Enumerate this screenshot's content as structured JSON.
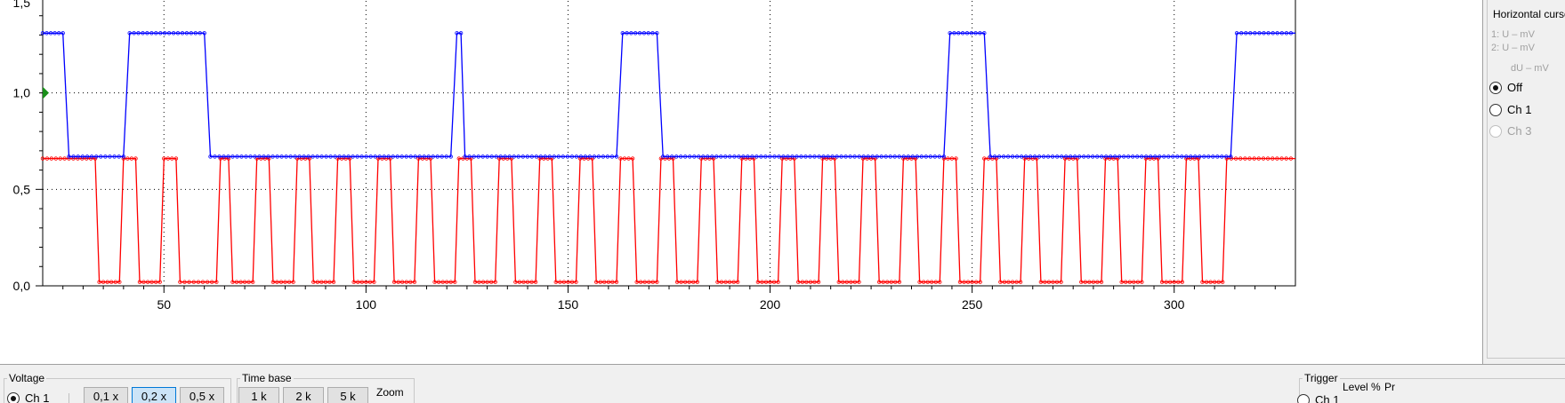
{
  "plot": {
    "x_ticks": [
      50,
      100,
      150,
      200,
      250,
      300
    ],
    "y_ticks": [
      "0,0",
      "0,5",
      "1,0"
    ],
    "y_top_partial": "1,5",
    "x_range": [
      20,
      330
    ],
    "y_range": [
      0,
      1.5
    ],
    "trigger_marker_level": 1.0,
    "colors": {
      "channel_1": "#ff0000",
      "channel_2": "#0000ff",
      "grid": "#000000",
      "trigger_marker": "#1a8f1a"
    }
  },
  "channels": {
    "blue": {
      "low": 0.67,
      "high": 1.31,
      "transitions": [
        [
          20,
          1.31
        ],
        [
          25,
          1.31
        ],
        [
          26.5,
          0.67
        ],
        [
          40,
          0.67
        ],
        [
          41.5,
          1.31
        ],
        [
          60,
          1.31
        ],
        [
          61.5,
          0.67
        ],
        [
          121,
          0.67
        ],
        [
          122.5,
          1.31
        ],
        [
          123.5,
          1.31
        ],
        [
          124.5,
          0.67
        ],
        [
          162,
          0.67
        ],
        [
          163.5,
          1.31
        ],
        [
          172,
          1.31
        ],
        [
          173.5,
          0.67
        ],
        [
          243,
          0.67
        ],
        [
          244.5,
          1.31
        ],
        [
          253,
          1.31
        ],
        [
          254.5,
          0.67
        ],
        [
          314,
          0.67
        ],
        [
          315.5,
          1.31
        ],
        [
          330,
          1.31
        ]
      ]
    },
    "red": {
      "low": 0.02,
      "high": 0.66,
      "transitions": [
        [
          20,
          0.66
        ],
        [
          33,
          0.66
        ],
        [
          34,
          0.02
        ],
        [
          39,
          0.02
        ],
        [
          40,
          0.66
        ],
        [
          43,
          0.66
        ],
        [
          44,
          0.02
        ],
        [
          49,
          0.02
        ],
        [
          50,
          0.66
        ],
        [
          53,
          0.66
        ],
        [
          54,
          0.02
        ],
        [
          63,
          0.02
        ],
        [
          64,
          0.66
        ],
        [
          66,
          0.66
        ],
        [
          67,
          0.02
        ],
        [
          72,
          0.02
        ],
        [
          73,
          0.66
        ],
        [
          76,
          0.66
        ],
        [
          77,
          0.02
        ],
        [
          82,
          0.02
        ],
        [
          83,
          0.66
        ],
        [
          86,
          0.66
        ],
        [
          87,
          0.02
        ],
        [
          92,
          0.02
        ],
        [
          93,
          0.66
        ],
        [
          96,
          0.66
        ],
        [
          97,
          0.02
        ],
        [
          102,
          0.02
        ],
        [
          103,
          0.66
        ],
        [
          106,
          0.66
        ],
        [
          107,
          0.02
        ],
        [
          112,
          0.02
        ],
        [
          113,
          0.66
        ],
        [
          116,
          0.66
        ],
        [
          117,
          0.02
        ],
        [
          122,
          0.02
        ],
        [
          123,
          0.66
        ],
        [
          126,
          0.66
        ],
        [
          127,
          0.02
        ],
        [
          132,
          0.02
        ],
        [
          133,
          0.66
        ],
        [
          136,
          0.66
        ],
        [
          137,
          0.02
        ],
        [
          142,
          0.02
        ],
        [
          143,
          0.66
        ],
        [
          146,
          0.66
        ],
        [
          147,
          0.02
        ],
        [
          152,
          0.02
        ],
        [
          153,
          0.66
        ],
        [
          156,
          0.66
        ],
        [
          157,
          0.02
        ],
        [
          162,
          0.02
        ],
        [
          163,
          0.66
        ],
        [
          166,
          0.66
        ],
        [
          167,
          0.02
        ],
        [
          172,
          0.02
        ],
        [
          173,
          0.66
        ],
        [
          176,
          0.66
        ],
        [
          177,
          0.02
        ],
        [
          182,
          0.02
        ],
        [
          183,
          0.66
        ],
        [
          186,
          0.66
        ],
        [
          187,
          0.02
        ],
        [
          192,
          0.02
        ],
        [
          193,
          0.66
        ],
        [
          196,
          0.66
        ],
        [
          197,
          0.02
        ],
        [
          202,
          0.02
        ],
        [
          203,
          0.66
        ],
        [
          206,
          0.66
        ],
        [
          207,
          0.02
        ],
        [
          212,
          0.02
        ],
        [
          213,
          0.66
        ],
        [
          216,
          0.66
        ],
        [
          217,
          0.02
        ],
        [
          222,
          0.02
        ],
        [
          223,
          0.66
        ],
        [
          226,
          0.66
        ],
        [
          227,
          0.02
        ],
        [
          232,
          0.02
        ],
        [
          233,
          0.66
        ],
        [
          236,
          0.66
        ],
        [
          237,
          0.02
        ],
        [
          242,
          0.02
        ],
        [
          243,
          0.66
        ],
        [
          246,
          0.66
        ],
        [
          247,
          0.02
        ],
        [
          252,
          0.02
        ],
        [
          253,
          0.66
        ],
        [
          256,
          0.66
        ],
        [
          257,
          0.02
        ],
        [
          262,
          0.02
        ],
        [
          263,
          0.66
        ],
        [
          266,
          0.66
        ],
        [
          267,
          0.02
        ],
        [
          272,
          0.02
        ],
        [
          273,
          0.66
        ],
        [
          276,
          0.66
        ],
        [
          277,
          0.02
        ],
        [
          282,
          0.02
        ],
        [
          283,
          0.66
        ],
        [
          286,
          0.66
        ],
        [
          287,
          0.02
        ],
        [
          292,
          0.02
        ],
        [
          293,
          0.66
        ],
        [
          296,
          0.66
        ],
        [
          297,
          0.02
        ],
        [
          302,
          0.02
        ],
        [
          303,
          0.66
        ],
        [
          306,
          0.66
        ],
        [
          307,
          0.02
        ],
        [
          312,
          0.02
        ],
        [
          313,
          0.66
        ],
        [
          330,
          0.66
        ]
      ]
    }
  },
  "right_panel": {
    "title": "Horizontal cursor",
    "cursor1": "1:    U – mV",
    "cursor2": "2:    U – mV",
    "delta": "dU – mV",
    "radio_off": "Off",
    "radio_ch1": "Ch 1",
    "radio_ch3": "Ch 3"
  },
  "bottom": {
    "voltage_title": "Voltage",
    "voltage_channel": "Ch 1",
    "voltage_buttons": [
      "0,1 x",
      "0,2 x",
      "0,5 x"
    ],
    "voltage_selected_index": 1,
    "timebase_title": "Time base",
    "timebase_buttons": [
      "1 k",
      "2 k",
      "5 k"
    ],
    "zoom_label": "Zoom",
    "trigger_title": "Trigger",
    "trigger_channel": "Ch 1",
    "level_label": "Level %",
    "level_label_partial": "Pr"
  }
}
